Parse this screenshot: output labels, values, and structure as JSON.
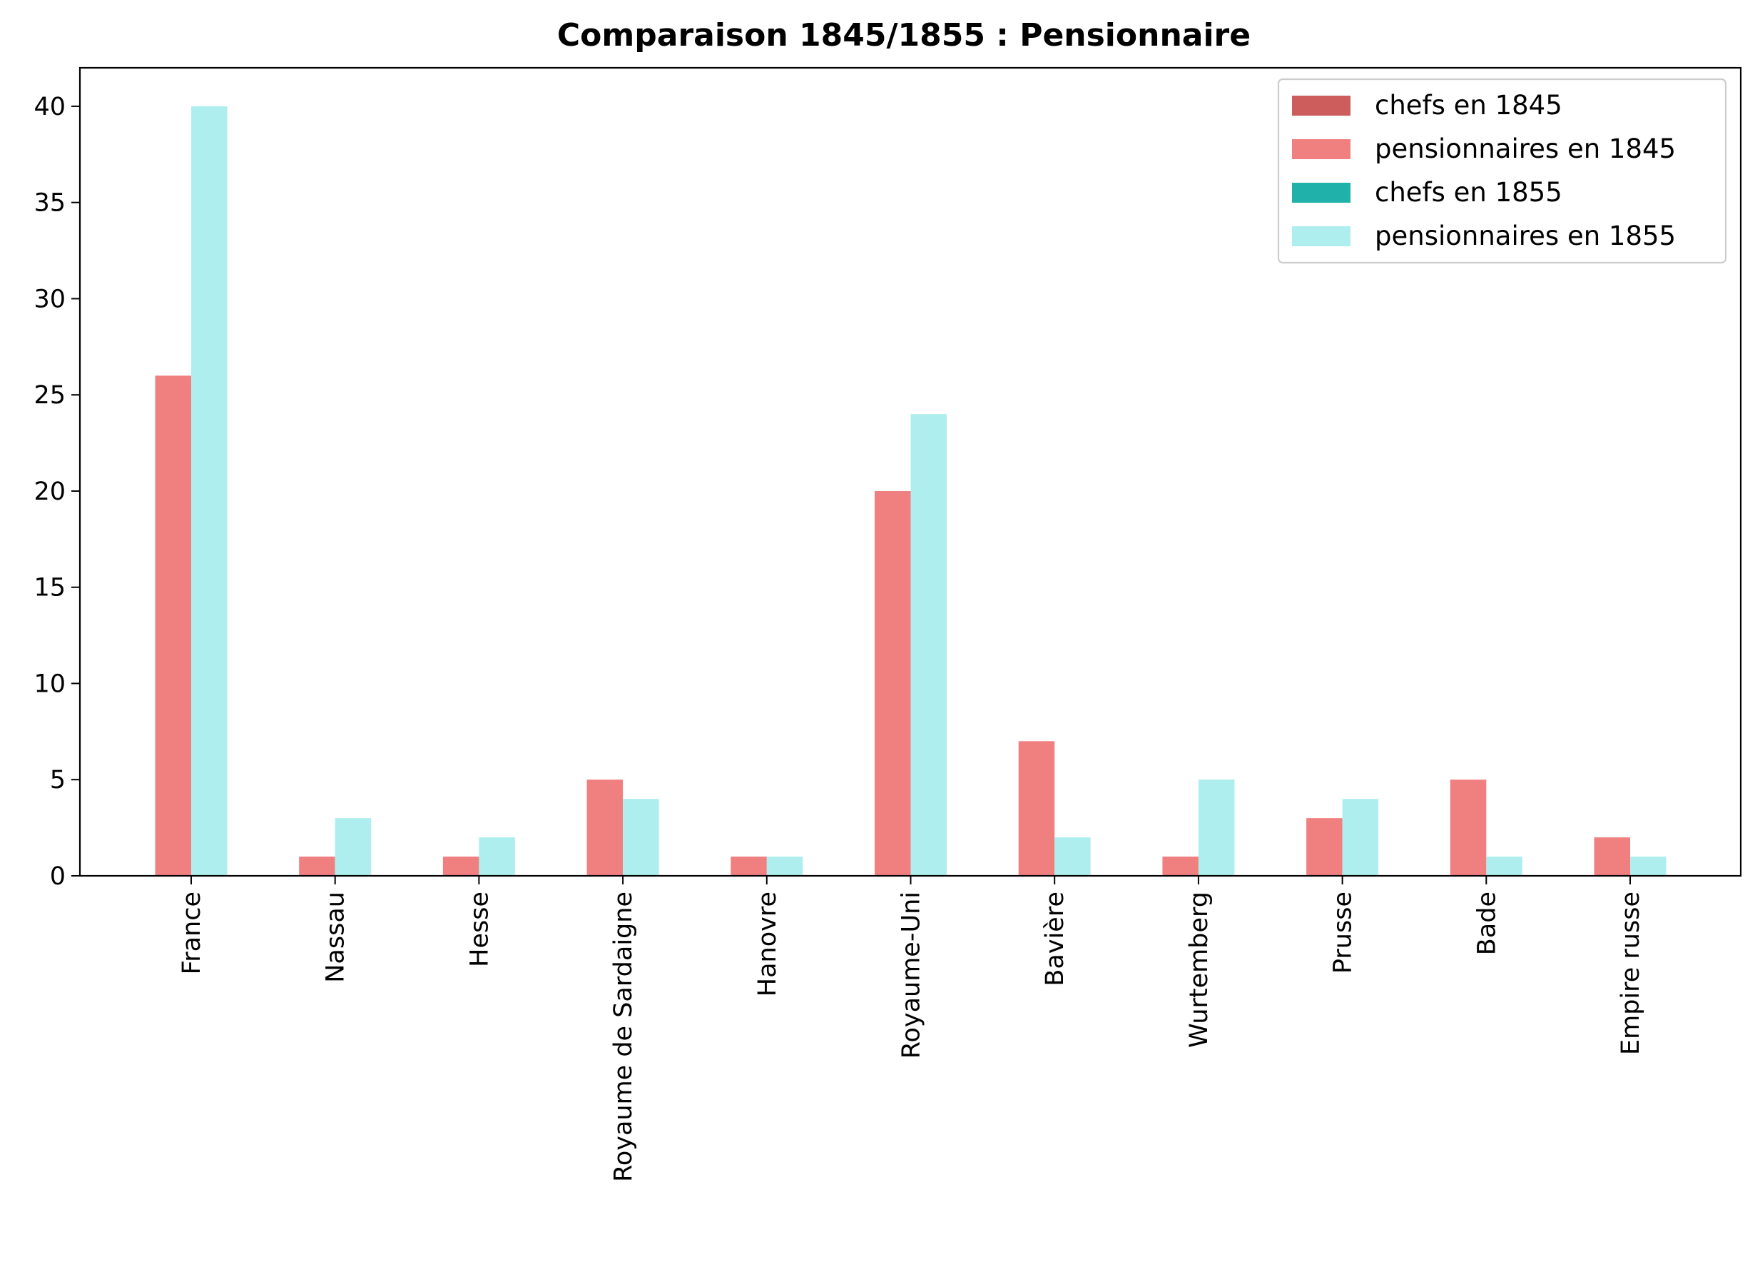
{
  "chart_data": {
    "type": "bar",
    "title": "Comparaison 1845/1855 : Pensionnaire",
    "xlabel": "",
    "ylabel": "",
    "ylim": [
      0,
      42
    ],
    "yticks": [
      0,
      5,
      10,
      15,
      20,
      25,
      30,
      35,
      40
    ],
    "categories": [
      "France",
      "Nassau",
      "Hesse",
      "Royaume de Sardaigne",
      "Hanovre",
      "Royaume-Uni",
      "Bavière",
      "Wurtemberg",
      "Prusse",
      "Bade",
      "Empire russe"
    ],
    "series": [
      {
        "name": "chefs en 1845",
        "color": "#cd5c5c",
        "group": 0,
        "values": [
          1,
          0,
          0,
          0,
          0,
          0,
          0,
          0,
          0,
          0,
          1
        ]
      },
      {
        "name": "pensionnaires en 1845",
        "color": "#f08080",
        "group": 0,
        "values": [
          26,
          1,
          1,
          5,
          1,
          20,
          7,
          1,
          3,
          5,
          2
        ]
      },
      {
        "name": "chefs en 1855",
        "color": "#20b2aa",
        "group": 1,
        "values": [
          0,
          0,
          0,
          0,
          0,
          0,
          0,
          0,
          0,
          0,
          0
        ]
      },
      {
        "name": "pensionnaires en 1855",
        "color": "#afeeee",
        "group": 1,
        "values": [
          40,
          3,
          2,
          4,
          1,
          24,
          2,
          5,
          4,
          1,
          1
        ]
      }
    ],
    "legend_position": "top-right",
    "grid": false
  }
}
